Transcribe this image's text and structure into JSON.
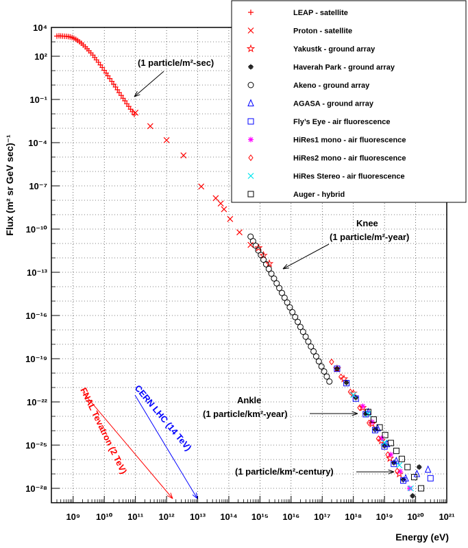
{
  "chart_data": {
    "type": "scatter",
    "title": "",
    "xlabel": "Energy (eV)",
    "ylabel": "Flux (m² sr GeV sec)⁻¹",
    "xscale": "log",
    "yscale": "log",
    "xlim": [
      200000000.0,
      1e+21
    ],
    "ylim": [
      1e-29,
      10000.0
    ],
    "grid": true,
    "legend_position": "top-right",
    "x_tick_labels": [
      "10⁹",
      "10¹⁰",
      "10¹¹",
      "10¹²",
      "10¹³",
      "10¹⁴",
      "10¹⁵",
      "10¹⁶",
      "10¹⁷",
      "10¹⁸",
      "10¹⁹",
      "10²⁰",
      "10²¹"
    ],
    "y_tick_labels": [
      "10⁴",
      "10²",
      "10⁻¹",
      "10⁻⁴",
      "10⁻⁷",
      "10⁻¹⁰",
      "10⁻¹³",
      "10⁻¹⁶",
      "10⁻¹⁹",
      "10⁻²²",
      "10⁻²⁵",
      "10⁻²⁸"
    ],
    "series": [
      {
        "name": "LEAP - satellite",
        "marker": "plus",
        "color": "#ff0000",
        "x": [
          300000000.0,
          350000000.0,
          400000000.0,
          460000000.0,
          530000000.0,
          610000000.0,
          700000000.0,
          800000000.0,
          920000000.0,
          1060000000.0,
          1220000000.0,
          1400000000.0,
          1600000000.0,
          1850000000.0,
          2100000000.0,
          2450000000.0,
          2800000000.0,
          3200000000.0,
          3700000000.0,
          4300000000.0,
          4900000000.0,
          5600000000.0,
          6500000000.0,
          7500000000.0,
          8600000000.0,
          10000000000.0,
          11500000000.0,
          13000000000.0,
          15000000000.0,
          17500000000.0,
          20000000000.0,
          23000000000.0,
          26500000000.0,
          30000000000.0,
          35000000000.0,
          40000000000.0,
          46000000000.0,
          53000000000.0,
          61000000000.0,
          70000000000.0,
          80000000000.0,
          92000000000.0
        ],
        "y": [
          2500,
          2600,
          2550,
          2500,
          2450,
          2400,
          2300,
          2200,
          2000,
          1750,
          1500,
          1250,
          1000,
          800,
          600,
          450,
          330,
          240,
          170,
          120,
          82,
          56,
          38,
          25,
          16.5,
          10.5,
          6.8,
          4.4,
          2.8,
          1.8,
          1.15,
          0.73,
          0.47,
          0.3,
          0.19,
          0.12,
          0.08,
          0.05,
          0.033,
          0.021,
          0.014,
          0.009
        ]
      },
      {
        "name": "Proton - satellite",
        "marker": "x",
        "color": "#ff0000",
        "x": [
          100000000000.0,
          300000000000.0,
          1000000000000.0,
          3500000000000.0,
          13000000000000.0,
          38000000000000.0,
          55000000000000.0,
          70000000000000.0,
          110000000000000.0,
          220000000000000.0,
          500000000000000.0
        ],
        "y": [
          0.012,
          0.0014,
          0.00015,
          1.3e-05,
          9e-08,
          1.4e-08,
          6e-09,
          2.4e-09,
          5e-10,
          6e-11,
          8e-12
        ]
      },
      {
        "name": "Yakustk - ground array",
        "marker": "star",
        "color": "#ff0000",
        "x": [
          900000000000000.0,
          1300000000000000.0,
          2000000000000000.0,
          3e+17,
          5e+17,
          1e+18,
          2e+18,
          4e+18,
          8e+18,
          1.5e+19,
          3e+19
        ],
        "y": [
          5e-12,
          1.5e-12,
          4e-13,
          2e-20,
          4e-21,
          4e-22,
          4e-23,
          3e-24,
          2e-25,
          1.2e-26,
          1e-27
        ]
      },
      {
        "name": "Haverah Park - ground array",
        "marker": "circle-plus",
        "color": "#000000",
        "x": [
          3e+17,
          6e+17,
          1.2e+18,
          2.5e+18,
          5e+18,
          1e+19,
          2e+19,
          4e+19,
          8e+19,
          1.3e+20
        ],
        "y": [
          2e-20,
          2.2e-21,
          2e-22,
          1.5e-23,
          1.2e-24,
          9e-26,
          6e-27,
          4e-28,
          3e-29,
          3e-27
        ]
      },
      {
        "name": "Akeno - ground array",
        "marker": "circle",
        "color": "#000000",
        "x": [
          500000000000000.0,
          600000000000000.0,
          730000000000000.0,
          880000000000000.0,
          1070000000000000.0,
          1300000000000000.0,
          1580000000000000.0,
          1920000000000000.0,
          2330000000000000.0,
          2830000000000000.0,
          3440000000000000.0,
          4180000000000000.0,
          5080000000000000.0,
          6170000000000000.0,
          7500000000000000.0,
          9100000000000000.0,
          1.1e+16,
          1.35e+16,
          1.64e+16,
          1.99e+16,
          2.42e+16,
          2.94e+16,
          3.57e+16,
          4.34e+16,
          5.27e+16,
          6.4e+16,
          7.78e+16,
          9.46e+16,
          1.15e+17,
          1.4e+17,
          1.7e+17
        ],
        "y": [
          3e-11,
          1.45e-11,
          7e-12,
          3.3e-12,
          1.6e-12,
          7.5e-13,
          3.6e-13,
          1.7e-13,
          8e-14,
          3.7e-14,
          1.7e-14,
          8e-15,
          3.7e-15,
          1.7e-15,
          8e-16,
          3.7e-16,
          1.7e-16,
          7.8e-17,
          3.6e-17,
          1.6e-17,
          7.4e-18,
          3.4e-18,
          1.55e-18,
          7e-19,
          3.2e-19,
          1.45e-19,
          6.5e-20,
          2.9e-20,
          1.3e-20,
          5.8e-21,
          2.6e-21
        ]
      },
      {
        "name": "AGASA - ground array",
        "marker": "triangle",
        "color": "#0000ff",
        "x": [
          3e+18,
          6e+18,
          1.2e+19,
          2.4e+19,
          4.8e+19,
          1.1e+20,
          2.5e+20
        ],
        "y": [
          2e-23,
          1.5e-24,
          1.2e-25,
          8e-27,
          5e-28,
          1e-27,
          2e-27
        ]
      },
      {
        "name": "Fly’s Eye - air fluorescence",
        "marker": "square",
        "color": "#0000ff",
        "x": [
          3e+17,
          6e+17,
          1.2e+18,
          2.5e+18,
          5e+18,
          1e+19,
          2e+19,
          4e+19,
          3e+20
        ],
        "y": [
          2e-20,
          2e-21,
          1.7e-22,
          1.4e-23,
          1.1e-24,
          8e-26,
          5e-27,
          3.5e-28,
          5e-28
        ]
      },
      {
        "name": "HiRes1 mono - air fluorescence",
        "marker": "asterisk",
        "color": "#ff00ff",
        "x": [
          2e+18,
          4e+18,
          8e+18,
          1.6e+19,
          3.2e+19,
          6.4e+19
        ],
        "y": [
          5e-23,
          4e-24,
          3e-25,
          2.2e-26,
          1.5e-27,
          1e-28
        ]
      },
      {
        "name": "HiRes2 mono - air fluorescence",
        "marker": "diamond",
        "color": "#ff0000",
        "x": [
          2e+17,
          4e+17,
          8e+17,
          1.6e+18,
          3.2e+18,
          6.4e+18,
          1.28e+19,
          2.56e+19
        ],
        "y": [
          6e-20,
          5.5e-21,
          5e-22,
          4e-23,
          3.5e-24,
          2.8e-25,
          2.2e-26,
          1.6e-27
        ]
      },
      {
        "name": "HiRes Stereo - air fluorescence",
        "marker": "x",
        "color": "#00e5ee",
        "x": [
          1e+18,
          3e+18,
          1e+19,
          3e+19,
          7e+19
        ],
        "y": [
          3e-22,
          1.5e-23,
          1.5e-25,
          4e-27,
          1e-28
        ]
      },
      {
        "name": "Auger - hybrid",
        "marker": "square",
        "color": "#000000",
        "x": [
          3e+18,
          4.5e+18,
          7e+18,
          1.05e+19,
          1.6e+19,
          2.4e+19,
          3.6e+19,
          5.5e+19,
          9e+19,
          1.5e+20
        ],
        "y": [
          2e-23,
          6e-24,
          1.7e-24,
          5e-25,
          1.4e-25,
          4e-26,
          1.1e-26,
          3e-27,
          6e-28,
          1e-28
        ]
      }
    ],
    "annotations": [
      {
        "id": "one-per-m2-sec",
        "text": "(1 particle/m²-sec)",
        "color": "#000000"
      },
      {
        "id": "knee-title",
        "text": "Knee",
        "color": "#000000"
      },
      {
        "id": "one-per-m2-year",
        "text": "(1 particle/m²-year)",
        "color": "#000000"
      },
      {
        "id": "ankle-title",
        "text": "Ankle",
        "color": "#000000"
      },
      {
        "id": "one-per-km2-year",
        "text": "(1 particle/km²-year)",
        "color": "#000000"
      },
      {
        "id": "one-per-km2-century",
        "text": "(1 particle/km²-century)",
        "color": "#000000"
      },
      {
        "id": "fnal-tevatron",
        "text": "FNAL Tevatron (2 TeV)",
        "color": "#ff0000"
      },
      {
        "id": "cern-lhc",
        "text": "CERN LHC (14 TeV)",
        "color": "#0000ff"
      }
    ]
  }
}
